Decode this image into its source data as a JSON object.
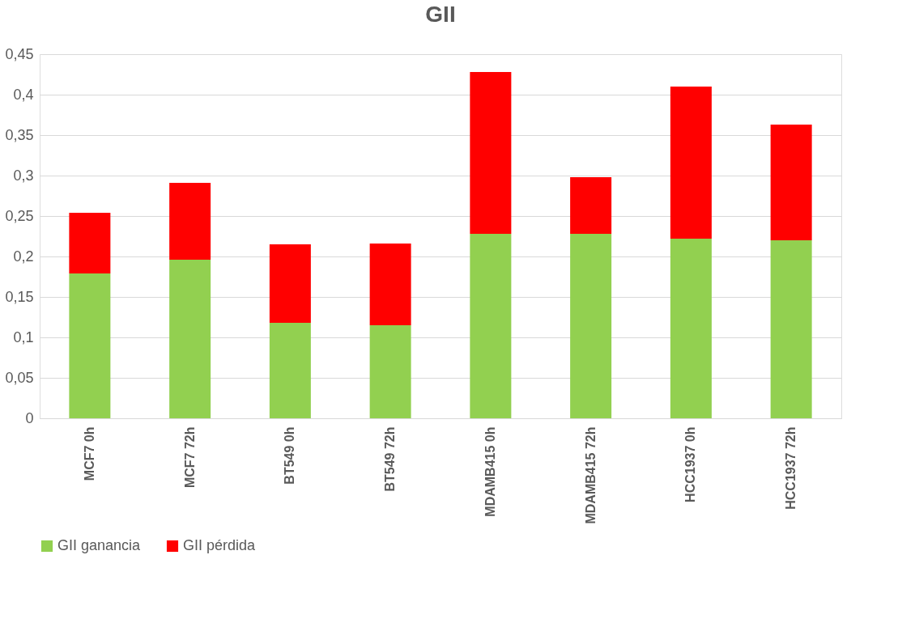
{
  "chart_data": {
    "type": "bar",
    "title": "GII",
    "stacked": true,
    "categories": [
      "MCF7 0h",
      "MCF7 72h",
      "BT549 0h",
      "BT549 72h",
      "MDAMB415 0h",
      "MDAMB415 72h",
      "HCC1937 0h",
      "HCC1937 72h"
    ],
    "series": [
      {
        "name": "GII ganancia",
        "color": "#92d050",
        "values": [
          0.179,
          0.196,
          0.118,
          0.115,
          0.228,
          0.228,
          0.222,
          0.22
        ]
      },
      {
        "name": "GII pérdida",
        "color": "#ff0000",
        "values": [
          0.075,
          0.095,
          0.097,
          0.101,
          0.2,
          0.07,
          0.188,
          0.143
        ]
      }
    ],
    "ylim": [
      0,
      0.45
    ],
    "yticks": [
      {
        "value": 0,
        "label": "0"
      },
      {
        "value": 0.05,
        "label": "0,05"
      },
      {
        "value": 0.1,
        "label": "0,1"
      },
      {
        "value": 0.15,
        "label": "0,15"
      },
      {
        "value": 0.2,
        "label": "0,2"
      },
      {
        "value": 0.25,
        "label": "0,25"
      },
      {
        "value": 0.3,
        "label": "0,3"
      },
      {
        "value": 0.35,
        "label": "0,35"
      },
      {
        "value": 0.4,
        "label": "0,4"
      },
      {
        "value": 0.45,
        "label": "0,45"
      }
    ],
    "grid": "y",
    "legend": "bottom"
  }
}
